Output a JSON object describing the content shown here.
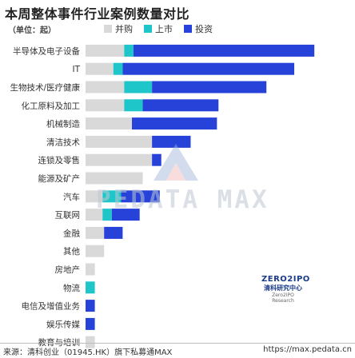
{
  "title": "本周整体事件行业案例数量对比",
  "unit_label": "（单位：起）",
  "legend": [
    {
      "name": "并购",
      "color": "#d9d9d9"
    },
    {
      "name": "上市",
      "color": "#1ec6c9"
    },
    {
      "name": "投资",
      "color": "#2742d8"
    }
  ],
  "watermark": "PEDATA MAX",
  "badge": {
    "mark": "ZERO2IPO",
    "name": "清科研究中心",
    "sub": "Zero2IPO Research"
  },
  "footer": {
    "source": "来源：清科创业（01945.HK）旗下私募通MAX",
    "url": "https://max.pedata.cn"
  },
  "chart_data": {
    "type": "bar",
    "orientation": "horizontal",
    "stacked": true,
    "categories": [
      "半导体及电子设备",
      "IT",
      "生物技术/医疗健康",
      "化工原料及加工",
      "机械制造",
      "清洁技术",
      "连锁及零售",
      "能源及矿产",
      "汽车",
      "互联网",
      "金融",
      "其他",
      "房地产",
      "物流",
      "电信及增值业务",
      "娱乐传媒",
      "教育与培训"
    ],
    "series": [
      {
        "name": "并购",
        "color": "#d9d9d9",
        "values": [
          25,
          18,
          25,
          25,
          30,
          43,
          43,
          37,
          11,
          11,
          12,
          12,
          6,
          0,
          0,
          0,
          6
        ]
      },
      {
        "name": "上市",
        "color": "#1ec6c9",
        "values": [
          6,
          6,
          18,
          12,
          0,
          0,
          0,
          0,
          12,
          6,
          0,
          0,
          0,
          6,
          0,
          0,
          0
        ]
      },
      {
        "name": "投资",
        "color": "#2742d8",
        "values": [
          117,
          111,
          74,
          49,
          55,
          25,
          6,
          0,
          25,
          18,
          12,
          0,
          0,
          0,
          6,
          6,
          0
        ]
      }
    ],
    "xlim": [
      0,
      150
    ],
    "grid": false,
    "legend_position": "top"
  }
}
